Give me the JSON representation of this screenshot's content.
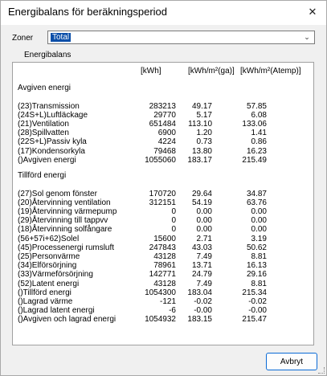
{
  "window": {
    "title": "Energibalans för beräkningsperiod",
    "close_glyph": "✕"
  },
  "zones": {
    "label": "Zoner",
    "selected": "Total"
  },
  "group": {
    "label": "Energibalans"
  },
  "table": {
    "headers": [
      "[kWh]",
      "[kWh/m²(ga)]",
      "[kWh/m²(Atemp)]"
    ],
    "sections": [
      {
        "heading": "Avgiven energi",
        "rows": [
          {
            "label": "(23)Transmission",
            "values": [
              "283213",
              "49.17",
              "57.85"
            ]
          },
          {
            "label": "(24S+L)Luftläckage",
            "values": [
              "29770",
              "5.17",
              "6.08"
            ]
          },
          {
            "label": "(21)Ventilation",
            "values": [
              "651484",
              "113.10",
              "133.06"
            ]
          },
          {
            "label": "(28)Spillvatten",
            "values": [
              "6900",
              "1.20",
              "1.41"
            ]
          },
          {
            "label": "(22S+L)Passiv kyla",
            "values": [
              "4224",
              "0.73",
              "0.86"
            ]
          },
          {
            "label": "(17)Kondensorkyla",
            "values": [
              "79468",
              "13.80",
              "16.23"
            ]
          },
          {
            "label": "()Avgiven energi",
            "values": [
              "1055060",
              "183.17",
              "215.49"
            ]
          }
        ]
      },
      {
        "heading": "Tillförd energi",
        "rows": [
          {
            "label": "(27)Sol genom fönster",
            "values": [
              "170720",
              "29.64",
              "34.87"
            ]
          },
          {
            "label": "(20)Återvinning ventilation",
            "values": [
              "312151",
              "54.19",
              "63.76"
            ]
          },
          {
            "label": "(19)Återvinning värmepump",
            "values": [
              "0",
              "0.00",
              "0.00"
            ]
          },
          {
            "label": "(29)Återvinning till tappvv",
            "values": [
              "0",
              "0.00",
              "0.00"
            ]
          },
          {
            "label": "(18)Återvinning solfångare",
            "values": [
              "0",
              "0.00",
              "0.00"
            ]
          },
          {
            "label": "(56+57i+62)Solel",
            "values": [
              "15600",
              "2.71",
              "3.19"
            ]
          },
          {
            "label": "(45)Processenergi rumsluft",
            "values": [
              "247843",
              "43.03",
              "50.62"
            ]
          },
          {
            "label": "(25)Personvärme",
            "values": [
              "43128",
              "7.49",
              "8.81"
            ]
          },
          {
            "label": "(34)Elförsörjning",
            "values": [
              "78961",
              "13.71",
              "16.13"
            ]
          },
          {
            "label": "(33)Värmeförsörjning",
            "values": [
              "142771",
              "24.79",
              "29.16"
            ]
          },
          {
            "label": "(52)Latent energi",
            "values": [
              "43128",
              "7.49",
              "8.81"
            ]
          },
          {
            "label": "()Tillförd energi",
            "values": [
              "1054300",
              "183.04",
              "215.34"
            ]
          },
          {
            "label": "()Lagrad värme",
            "values": [
              "-121",
              "-0.02",
              "-0.02"
            ]
          },
          {
            "label": "()Lagrad latent energi",
            "values": [
              "-6",
              "-0.00",
              "-0.00"
            ]
          },
          {
            "label": "()Avgiven och lagrad energi",
            "values": [
              "1054932",
              "183.15",
              "215.47"
            ]
          }
        ]
      }
    ]
  },
  "buttons": {
    "cancel": "Avbryt"
  }
}
